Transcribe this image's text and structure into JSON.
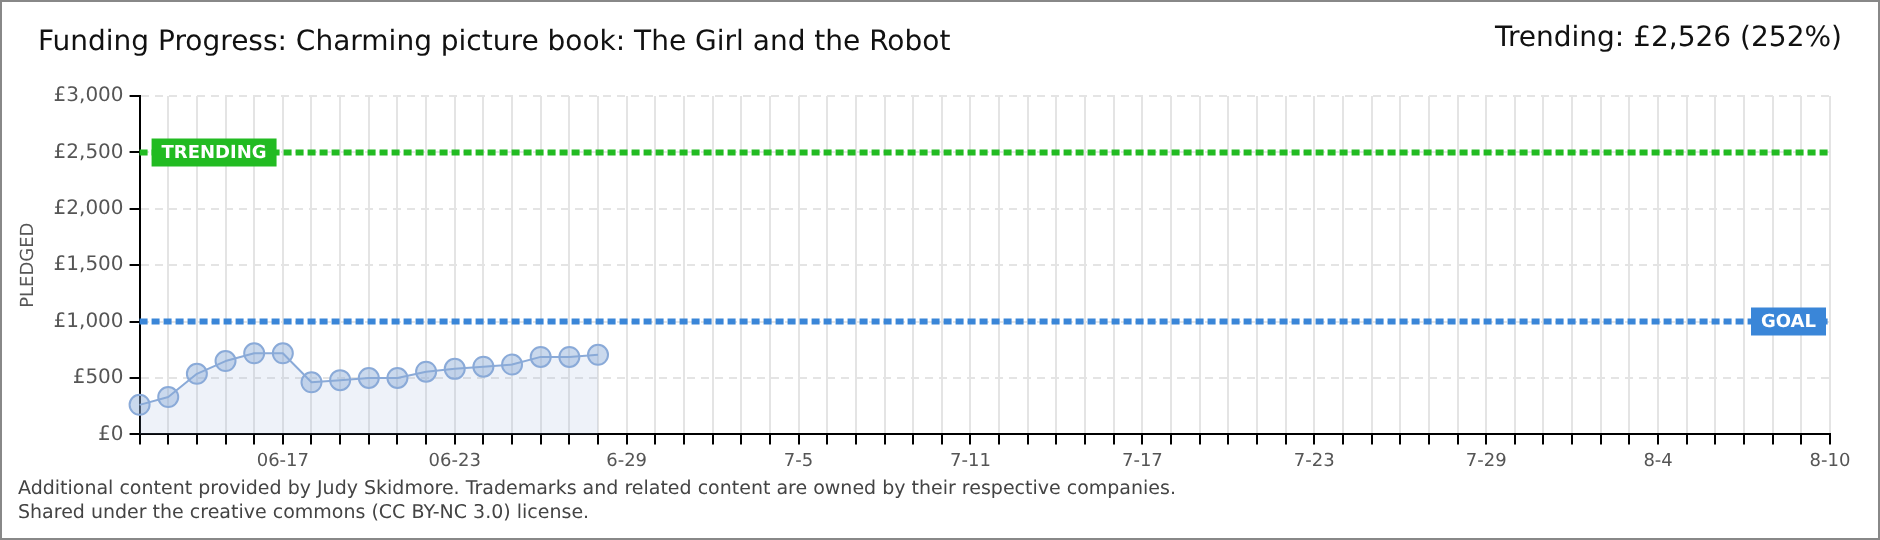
{
  "chart_data": {
    "type": "area",
    "title": "Funding Progress: Charming picture book: The Girl and the Robot",
    "subtitle": "Trending:  £2,526 (252%)",
    "ylabel": "PLEDGED",
    "categories": [
      null,
      null,
      null,
      null,
      null,
      "06-17",
      null,
      null,
      null,
      null,
      null,
      "06-23",
      null,
      null,
      null,
      null,
      null,
      "6-29",
      null,
      null,
      null,
      null,
      null,
      "7-5",
      null,
      null,
      null,
      null,
      null,
      "7-11",
      null,
      null,
      null,
      null,
      null,
      "7-17",
      null,
      null,
      null,
      null,
      null,
      "7-23",
      null,
      null,
      null,
      null,
      null,
      "7-29",
      null,
      null,
      null,
      null,
      null,
      "8-4",
      null,
      null,
      null,
      null,
      null,
      "8-10"
    ],
    "series": [
      {
        "color": "#8aaad8",
        "values": [
          262,
          331,
          537,
          650,
          719,
          719,
          462,
          481,
          500,
          500,
          556,
          581,
          600,
          619,
          687,
          687,
          706,
          null,
          null,
          null,
          null,
          null,
          null,
          null,
          null,
          null,
          null,
          null,
          null,
          null,
          null,
          null,
          null,
          null,
          null,
          null,
          null,
          null,
          null,
          null,
          null,
          null,
          null,
          null,
          null,
          null,
          null,
          null,
          null,
          null,
          null,
          null,
          null,
          null,
          null,
          null,
          null,
          null,
          null,
          null
        ]
      }
    ],
    "ylim": [
      0,
      3000
    ],
    "yticks": [
      {
        "value": 0,
        "label": "£0"
      },
      {
        "value": 500,
        "label": "£500"
      },
      {
        "value": 1000,
        "label": "£1,000"
      },
      {
        "value": 1500,
        "label": "£1,500"
      },
      {
        "value": 2000,
        "label": "£2,000"
      },
      {
        "value": 2500,
        "label": "£2,500"
      },
      {
        "value": 3000,
        "label": "£3,000"
      }
    ],
    "ref_lines": [
      {
        "axis": "y",
        "value": 2500,
        "label": "TRENDING",
        "color": "#22bb22",
        "line_style": "dashed"
      },
      {
        "axis": "y",
        "value": 1000,
        "label": "GOAL",
        "color": "#3a86d8",
        "line_style": "dashed"
      }
    ],
    "grid": true,
    "legend": false,
    "marker": "circle",
    "line_style": "solid",
    "annotations": [
      "Additional content provided by Judy Skidmore. Trademarks and related content are owned by their respective companies.",
      "Shared under the creative commons (CC BY-NC 3.0) license."
    ]
  }
}
